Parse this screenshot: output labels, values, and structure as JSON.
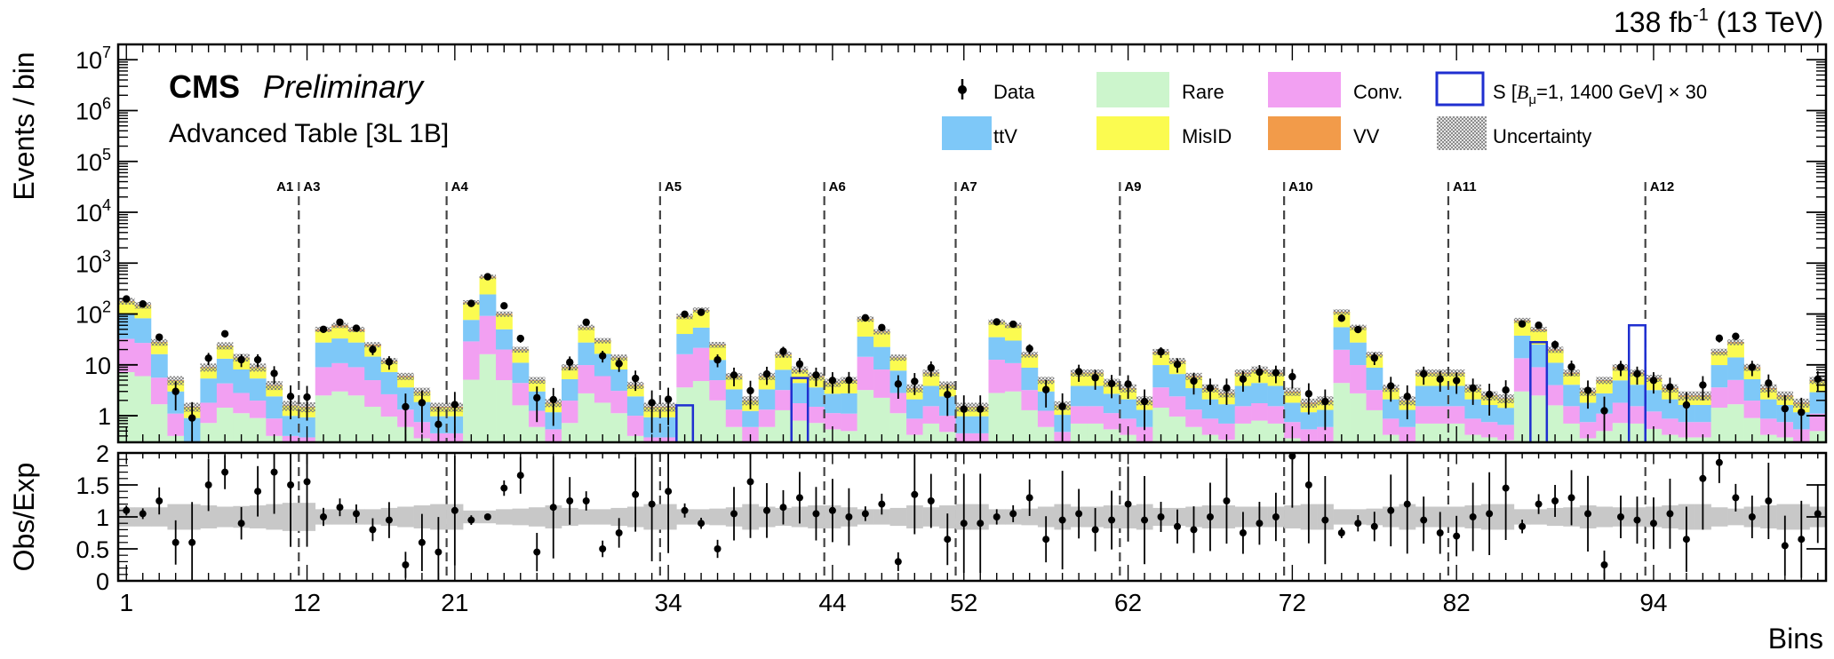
{
  "header": {
    "lumi_base": "138 fb",
    "lumi_exp": "-1",
    "lumi_energy": " (13 TeV)"
  },
  "cms": {
    "label": "CMS",
    "status": "Preliminary",
    "table": "Advanced Table [3L 1B]"
  },
  "colors": {
    "Rare": "#ccf5cc",
    "ttV": "#7ec8f8",
    "Conv.": "#f2a0f2",
    "MisID": "#fbfb50",
    "VV": "#f29b4a",
    "signal": "#1f2fd0",
    "ratio_band": "#c8c8c8",
    "hatch": "#8c8c8c",
    "region_line": "#444444"
  },
  "legend": {
    "items": [
      {
        "key": "data",
        "label": "Data"
      },
      {
        "key": "Rare",
        "label": "Rare"
      },
      {
        "key": "Conv.",
        "label": "Conv."
      },
      {
        "key": "signal",
        "label_pre": "S [",
        "label_B": "B",
        "label_sub": "μ",
        "label_post": "=1, 1400 GeV] × 30"
      },
      {
        "key": "ttV",
        "label": "ttV"
      },
      {
        "key": "MisID",
        "label": "MisID"
      },
      {
        "key": "VV",
        "label": "VV"
      },
      {
        "key": "unc",
        "label": "Uncertainty"
      }
    ]
  },
  "chart_data": {
    "type": "bar",
    "stacked": true,
    "xlabel": "Bins",
    "ylabel_main": "Events / bin",
    "ylabel_ratio": "Obs/Exp",
    "x_range": [
      0.5,
      104.5
    ],
    "y_range_main": [
      0.3,
      20000000
    ],
    "y_log": true,
    "y_range_ratio": [
      0,
      2
    ],
    "x_ticks": [
      1,
      12,
      21,
      34,
      44,
      52,
      62,
      72,
      82,
      94
    ],
    "y_ticks_main": [
      {
        "value": 1,
        "label": "1"
      },
      {
        "value": 10,
        "label": "10"
      },
      {
        "value": 100,
        "base": "10",
        "exp": "2"
      },
      {
        "value": 1000,
        "base": "10",
        "exp": "3"
      },
      {
        "value": 10000,
        "base": "10",
        "exp": "4"
      },
      {
        "value": 100000,
        "base": "10",
        "exp": "5"
      },
      {
        "value": 1000000,
        "base": "10",
        "exp": "6"
      },
      {
        "value": 10000000,
        "base": "10",
        "exp": "7"
      }
    ],
    "y_ticks_ratio": [
      {
        "value": 0,
        "label": "0"
      },
      {
        "value": 0.5,
        "label": "0.5"
      },
      {
        "value": 1,
        "label": "1"
      },
      {
        "value": 1.5,
        "label": "1.5"
      },
      {
        "value": 2,
        "label": "2"
      }
    ],
    "regions": [
      {
        "label": "A1",
        "start": 1
      },
      {
        "label": "A3",
        "start": 11.5
      },
      {
        "label": "A4",
        "start": 20.5
      },
      {
        "label": "A5",
        "start": 33.5
      },
      {
        "label": "A6",
        "start": 43.5
      },
      {
        "label": "A7",
        "start": 51.5
      },
      {
        "label": "A9",
        "start": 61.5
      },
      {
        "label": "A10",
        "start": 71.5
      },
      {
        "label": "A11",
        "start": 81.5
      },
      {
        "label": "A12",
        "start": 93.5
      }
    ],
    "stack_order": [
      "Rare",
      "Conv.",
      "ttV",
      "MisID",
      "VV"
    ],
    "totals": [
      180,
      150,
      28,
      5,
      1.5,
      9,
      24,
      14,
      9,
      4,
      1.6,
      1.5,
      50,
      60,
      50,
      25,
      12,
      6,
      3,
      1.5,
      1.5,
      170,
      540,
      100,
      20,
      5,
      1.8,
      9,
      55,
      30,
      14,
      4,
      1.5,
      1.5,
      90,
      120,
      25,
      6,
      2,
      6,
      16,
      8,
      6,
      4.5,
      5,
      80,
      45,
      14,
      3.5,
      7,
      4,
      1.5,
      1.5,
      70,
      60,
      16,
      5,
      1.6,
      7,
      7,
      4.5,
      3.5,
      2,
      18,
      12,
      6,
      3.5,
      2.8,
      7,
      8,
      7,
      3,
      1.8,
      2,
      110,
      55,
      16,
      3.5,
      2,
      7,
      7,
      7,
      3.5,
      2.5,
      2.2,
      75,
      50,
      20,
      7,
      3,
      5,
      9,
      7,
      5.5,
      3.5,
      2.5,
      2.5,
      18,
      28,
      9,
      3.5,
      2.5,
      1.8,
      5,
      1.8,
      1.5
    ],
    "fractions": [
      [
        0.04,
        0.04,
        0.06,
        0.08,
        0.05,
        0.08,
        0.06,
        0.08,
        0.1,
        0.1,
        0.12,
        0.12,
        0.05,
        0.05,
        0.05,
        0.06,
        0.08,
        0.1,
        0.12,
        0.15,
        0.15,
        0.03,
        0.03,
        0.05,
        0.08,
        0.12,
        0.15,
        0.08,
        0.05,
        0.06,
        0.08,
        0.1,
        0.12,
        0.12,
        0.04,
        0.04,
        0.08,
        0.1,
        0.15,
        0.1,
        0.08,
        0.1,
        0.12,
        0.12,
        0.1,
        0.04,
        0.05,
        0.08,
        0.12,
        0.1,
        0.12,
        0.15,
        0.15,
        0.04,
        0.05,
        0.08,
        0.12,
        0.15,
        0.1,
        0.1,
        0.12,
        0.12,
        0.15,
        0.08,
        0.08,
        0.1,
        0.12,
        0.12,
        0.1,
        0.1,
        0.1,
        0.12,
        0.15,
        0.15,
        0.04,
        0.05,
        0.08,
        0.12,
        0.15,
        0.1,
        0.1,
        0.1,
        0.12,
        0.15,
        0.15,
        0.04,
        0.05,
        0.08,
        0.1,
        0.12,
        0.1,
        0.08,
        0.1,
        0.1,
        0.12,
        0.15,
        0.15,
        0.08,
        0.06,
        0.1,
        0.12,
        0.15,
        0.15,
        0.1,
        0.15,
        0.15
      ],
      [
        0.18,
        0.18,
        0.2,
        0.22,
        0.2,
        0.2,
        0.18,
        0.2,
        0.22,
        0.22,
        0.25,
        0.25,
        0.18,
        0.18,
        0.18,
        0.2,
        0.22,
        0.22,
        0.25,
        0.3,
        0.3,
        0.17,
        0.17,
        0.2,
        0.22,
        0.25,
        0.3,
        0.22,
        0.18,
        0.2,
        0.22,
        0.25,
        0.25,
        0.25,
        0.18,
        0.18,
        0.2,
        0.22,
        0.3,
        0.22,
        0.2,
        0.22,
        0.25,
        0.25,
        0.22,
        0.18,
        0.18,
        0.2,
        0.25,
        0.22,
        0.25,
        0.3,
        0.3,
        0.18,
        0.18,
        0.2,
        0.25,
        0.3,
        0.22,
        0.22,
        0.25,
        0.25,
        0.3,
        0.2,
        0.2,
        0.22,
        0.25,
        0.25,
        0.22,
        0.22,
        0.22,
        0.25,
        0.3,
        0.3,
        0.18,
        0.18,
        0.2,
        0.25,
        0.3,
        0.22,
        0.22,
        0.22,
        0.25,
        0.3,
        0.3,
        0.18,
        0.18,
        0.2,
        0.22,
        0.25,
        0.22,
        0.2,
        0.22,
        0.22,
        0.25,
        0.3,
        0.3,
        0.2,
        0.18,
        0.22,
        0.25,
        0.3,
        0.3,
        0.22,
        0.3,
        0.3
      ],
      [
        0.55,
        0.55,
        0.58,
        0.6,
        0.6,
        0.6,
        0.55,
        0.58,
        0.6,
        0.6,
        0.62,
        0.62,
        0.55,
        0.55,
        0.55,
        0.58,
        0.6,
        0.6,
        0.62,
        0.65,
        0.65,
        0.45,
        0.45,
        0.5,
        0.55,
        0.6,
        0.65,
        0.58,
        0.5,
        0.55,
        0.58,
        0.6,
        0.62,
        0.62,
        0.45,
        0.45,
        0.5,
        0.55,
        0.62,
        0.55,
        0.5,
        0.55,
        0.6,
        0.6,
        0.55,
        0.45,
        0.5,
        0.55,
        0.6,
        0.55,
        0.6,
        0.65,
        0.65,
        0.5,
        0.5,
        0.55,
        0.6,
        0.65,
        0.55,
        0.55,
        0.6,
        0.6,
        0.65,
        0.55,
        0.55,
        0.58,
        0.6,
        0.6,
        0.55,
        0.55,
        0.55,
        0.6,
        0.65,
        0.65,
        0.5,
        0.5,
        0.55,
        0.6,
        0.65,
        0.55,
        0.55,
        0.55,
        0.6,
        0.65,
        0.65,
        0.5,
        0.5,
        0.55,
        0.58,
        0.6,
        0.55,
        0.55,
        0.58,
        0.58,
        0.6,
        0.65,
        0.65,
        0.55,
        0.5,
        0.58,
        0.6,
        0.65,
        0.65,
        0.58,
        0.65,
        0.65
      ],
      [
        0.97,
        0.97,
        0.97,
        0.97,
        0.97,
        0.97,
        0.97,
        0.97,
        0.97,
        0.97,
        0.97,
        0.97,
        0.92,
        0.92,
        0.92,
        0.93,
        0.95,
        0.95,
        0.96,
        0.96,
        0.96,
        0.96,
        0.96,
        0.96,
        0.97,
        0.97,
        0.97,
        0.97,
        0.97,
        0.97,
        0.97,
        0.97,
        0.97,
        0.97,
        0.97,
        0.97,
        0.97,
        0.97,
        0.97,
        0.97,
        0.97,
        0.97,
        0.97,
        0.97,
        0.97,
        0.97,
        0.97,
        0.97,
        0.97,
        0.97,
        0.97,
        0.97,
        0.97,
        0.97,
        0.97,
        0.97,
        0.97,
        0.97,
        0.97,
        0.97,
        0.97,
        0.97,
        0.97,
        0.95,
        0.95,
        0.95,
        0.95,
        0.95,
        0.95,
        0.95,
        0.95,
        0.95,
        0.95,
        0.95,
        0.97,
        0.97,
        0.97,
        0.97,
        0.97,
        0.97,
        0.97,
        0.97,
        0.97,
        0.97,
        0.97,
        0.95,
        0.95,
        0.95,
        0.95,
        0.95,
        0.95,
        0.95,
        0.95,
        0.95,
        0.95,
        0.95,
        0.95,
        0.95,
        0.95,
        0.95,
        0.95,
        0.95,
        0.95,
        0.95,
        0.95,
        0.95
      ]
    ],
    "rel_unc": [
      0.15,
      0.15,
      0.15,
      0.2,
      0.2,
      0.18,
      0.16,
      0.17,
      0.18,
      0.2,
      0.22,
      0.22,
      0.12,
      0.12,
      0.12,
      0.12,
      0.14,
      0.16,
      0.18,
      0.2,
      0.2,
      0.1,
      0.1,
      0.12,
      0.13,
      0.15,
      0.18,
      0.14,
      0.12,
      0.12,
      0.14,
      0.16,
      0.2,
      0.2,
      0.12,
      0.12,
      0.13,
      0.15,
      0.2,
      0.16,
      0.14,
      0.16,
      0.18,
      0.18,
      0.15,
      0.12,
      0.12,
      0.14,
      0.18,
      0.15,
      0.18,
      0.2,
      0.2,
      0.12,
      0.12,
      0.13,
      0.16,
      0.2,
      0.16,
      0.16,
      0.18,
      0.18,
      0.2,
      0.14,
      0.14,
      0.16,
      0.18,
      0.18,
      0.16,
      0.16,
      0.16,
      0.18,
      0.2,
      0.2,
      0.12,
      0.12,
      0.13,
      0.16,
      0.2,
      0.16,
      0.16,
      0.16,
      0.18,
      0.2,
      0.2,
      0.12,
      0.12,
      0.14,
      0.15,
      0.18,
      0.16,
      0.15,
      0.15,
      0.16,
      0.18,
      0.2,
      0.2,
      0.15,
      0.13,
      0.16,
      0.18,
      0.2,
      0.2,
      0.16,
      0.2,
      0.2
    ],
    "data_obs": [
      1.1,
      1.05,
      1.25,
      0.6,
      0.6,
      1.5,
      1.7,
      0.9,
      1.4,
      1.7,
      1.5,
      1.55,
      1.0,
      1.15,
      1.05,
      0.8,
      0.95,
      0.25,
      0.6,
      0.45,
      1.1,
      0.95,
      1.0,
      1.45,
      1.65,
      0.45,
      1.15,
      1.25,
      1.25,
      0.5,
      0.75,
      1.35,
      1.2,
      1.4,
      1.1,
      0.9,
      0.5,
      1.05,
      1.55,
      1.1,
      1.15,
      1.3,
      1.05,
      1.1,
      1.0,
      1.05,
      1.2,
      0.3,
      1.35,
      1.25,
      0.65,
      0.9,
      0.9,
      1.0,
      1.05,
      1.3,
      0.65,
      0.95,
      1.05,
      0.8,
      0.95,
      1.2,
      0.95,
      1.0,
      0.85,
      0.8,
      1.0,
      1.25,
      0.75,
      0.9,
      1.0,
      1.95,
      1.5,
      0.95,
      0.75,
      0.9,
      0.85,
      1.1,
      1.2,
      0.95,
      0.75,
      0.7,
      1.0,
      1.05,
      1.45,
      0.85,
      1.2,
      1.25,
      1.3,
      1.05,
      0.25,
      1.0,
      0.95,
      0.9,
      1.05,
      0.65,
      1.6,
      1.85,
      1.3,
      1.0,
      1.25,
      0.55,
      0.65,
      1.05,
      0.4,
      1.1
    ],
    "signal": [
      {
        "start": 34.5,
        "end": 35.5,
        "value": 1.6
      },
      {
        "start": 41.5,
        "end": 42.5,
        "value": 5.5
      },
      {
        "start": 86.5,
        "end": 87.5,
        "value": 28
      },
      {
        "start": 92.5,
        "end": 93.5,
        "value": 60
      }
    ]
  }
}
